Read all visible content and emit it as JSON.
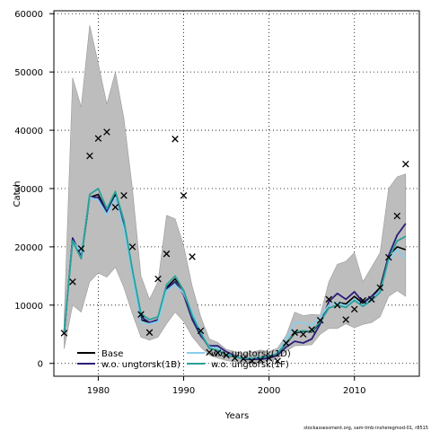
{
  "chart_data": {
    "type": "line",
    "title": "",
    "xlabel": "Years",
    "ylabel": "Catch",
    "xlim": [
      1974.8,
      2017.6
    ],
    "ylim": [
      -2200,
      60500
    ],
    "xticks": [
      1980,
      1990,
      2000,
      2010
    ],
    "yticks": [
      0,
      10000,
      20000,
      30000,
      40000,
      50000,
      60000
    ],
    "grid": "dotted",
    "legend_position": "bottom-left",
    "footer_note": "stockassessment.org, sam-tmb-insheregmod-01, r8515",
    "band": {
      "x": [
        1976,
        1977,
        1978,
        1979,
        1980,
        1981,
        1982,
        1983,
        1984,
        1985,
        1986,
        1987,
        1988,
        1989,
        1990,
        1991,
        1992,
        1993,
        1994,
        1995,
        1996,
        1997,
        1998,
        1999,
        2000,
        2001,
        2002,
        2003,
        2004,
        2005,
        2006,
        2007,
        2008,
        2009,
        2010,
        2011,
        2012,
        2013,
        2014,
        2015,
        2016
      ],
      "lower": [
        2500,
        10000,
        8800,
        14000,
        15500,
        14800,
        16500,
        13000,
        8500,
        4500,
        4000,
        4500,
        6800,
        8800,
        7200,
        4600,
        2800,
        1400,
        900,
        500,
        300,
        150,
        100,
        100,
        400,
        800,
        2100,
        3000,
        3100,
        3200,
        5000,
        6000,
        6000,
        6800,
        6100,
        6700,
        7000,
        8000,
        11500,
        12500,
        11500
      ],
      "upper": [
        7500,
        49000,
        44000,
        58000,
        51500,
        44500,
        50000,
        42000,
        30000,
        15000,
        11000,
        14000,
        25400,
        24800,
        20200,
        13200,
        8000,
        4200,
        3600,
        2400,
        2000,
        1600,
        1900,
        2300,
        2000,
        2600,
        4800,
        8800,
        8200,
        8400,
        8300,
        14000,
        17000,
        17500,
        19000,
        14000,
        16500,
        19000,
        30000,
        32000,
        32500
      ]
    },
    "series": [
      {
        "name": "Base",
        "color": "#000000",
        "x": [
          1976,
          1977,
          1978,
          1979,
          1980,
          1981,
          1982,
          1983,
          1984,
          1985,
          1986,
          1987,
          1988,
          1989,
          1990,
          1991,
          1992,
          1993,
          1994,
          1995,
          1996,
          1997,
          1998,
          1999,
          2000,
          2001,
          2002,
          2003,
          2004,
          2005,
          2006,
          2007,
          2008,
          2009,
          2010,
          2011,
          2012,
          2013,
          2014,
          2015,
          2016
        ],
        "values": [
          5000,
          21500,
          18000,
          28500,
          29000,
          26000,
          29000,
          24000,
          16000,
          7500,
          7000,
          7500,
          13000,
          14500,
          12500,
          8000,
          5000,
          2600,
          2200,
          1400,
          1100,
          800,
          900,
          1000,
          1100,
          1600,
          3400,
          5200,
          5500,
          5400,
          7000,
          10000,
          10500,
          10200,
          11500,
          10300,
          11500,
          13000,
          18500,
          20000,
          19500
        ]
      },
      {
        "name": "w.o. ungtorsk(1B)",
        "color": "#2a1e7a",
        "x": [
          1976,
          1977,
          1978,
          1979,
          1980,
          1981,
          1982,
          1983,
          1984,
          1985,
          1986,
          1987,
          1988,
          1989,
          1990,
          1991,
          1992,
          1993,
          1994,
          1995,
          1996,
          1997,
          1998,
          1999,
          2000,
          2001,
          2002,
          2003,
          2004,
          2005,
          2006,
          2007,
          2008,
          2009,
          2010,
          2011,
          2012,
          2013,
          2014,
          2015,
          2016
        ],
        "values": [
          5000,
          21500,
          18500,
          28500,
          28500,
          26000,
          28500,
          23500,
          15500,
          8000,
          7000,
          7500,
          12800,
          14000,
          11800,
          7500,
          4700,
          3000,
          3000,
          2000,
          1300,
          700,
          700,
          700,
          900,
          1400,
          2800,
          3800,
          3500,
          4200,
          6800,
          10600,
          12000,
          11000,
          12300,
          10500,
          11500,
          12500,
          18500,
          22000,
          24000
        ]
      },
      {
        "name": "w.o. ungtorsk(1D)",
        "color": "#87ceeb",
        "x": [
          1976,
          1977,
          1978,
          1979,
          1980,
          1981,
          1982,
          1983,
          1984,
          1985,
          1986,
          1987,
          1988,
          1989,
          1990,
          1991,
          1992,
          1993,
          1994,
          1995,
          1996,
          1997,
          1998,
          1999,
          2000,
          2001,
          2002,
          2003,
          2004,
          2005,
          2006,
          2007,
          2008,
          2009,
          2010,
          2011,
          2012,
          2013,
          2014,
          2015,
          2016
        ],
        "values": [
          5300,
          21000,
          19000,
          28500,
          28000,
          25500,
          28500,
          23000,
          15000,
          7000,
          6800,
          7200,
          12500,
          13500,
          12000,
          8800,
          5400,
          2800,
          2600,
          1600,
          1200,
          900,
          900,
          1100,
          1300,
          1800,
          4200,
          7000,
          7000,
          6500,
          8000,
          10000,
          10500,
          9800,
          11000,
          10000,
          11000,
          12500,
          17500,
          19500,
          18000
        ]
      },
      {
        "name": "w.o. ungtorsk(1F)",
        "color": "#2aa198",
        "x": [
          1976,
          1977,
          1978,
          1979,
          1980,
          1981,
          1982,
          1983,
          1984,
          1985,
          1986,
          1987,
          1988,
          1989,
          1990,
          1991,
          1992,
          1993,
          1994,
          1995,
          1996,
          1997,
          1998,
          1999,
          2000,
          2001,
          2002,
          2003,
          2004,
          2005,
          2006,
          2007,
          2008,
          2009,
          2010,
          2011,
          2012,
          2013,
          2014,
          2015,
          2016
        ],
        "values": [
          5500,
          21000,
          18000,
          29000,
          30000,
          26500,
          29500,
          24500,
          16000,
          8500,
          7500,
          8000,
          13500,
          15000,
          12500,
          8200,
          5200,
          2600,
          2200,
          1500,
          1100,
          800,
          900,
          1000,
          1200,
          1700,
          3500,
          5400,
          5600,
          5500,
          7200,
          9500,
          10000,
          9600,
          10800,
          9800,
          10800,
          12200,
          18000,
          21000,
          21800
        ]
      }
    ],
    "observations": {
      "marker": "x",
      "x": [
        1976,
        1977,
        1978,
        1979,
        1980,
        1981,
        1982,
        1983,
        1984,
        1985,
        1986,
        1987,
        1988,
        1989,
        1990,
        1991,
        1992,
        1993,
        1994,
        1995,
        1996,
        1997,
        1998,
        1999,
        2000,
        2001,
        2002,
        2003,
        2004,
        2005,
        2006,
        2007,
        2008,
        2009,
        2010,
        2011,
        2012,
        2013,
        2014,
        2015,
        2016
      ],
      "values": [
        5200,
        14000,
        19700,
        35600,
        38600,
        39700,
        26800,
        28800,
        20000,
        8400,
        5300,
        14500,
        18800,
        38500,
        28800,
        18300,
        5600,
        1900,
        1800,
        1400,
        900,
        800,
        400,
        600,
        900,
        400,
        3500,
        5300,
        5000,
        5800,
        7400,
        11000,
        10000,
        7500,
        9300,
        10800,
        11000,
        13000,
        18200,
        25300,
        34200
      ]
    }
  }
}
